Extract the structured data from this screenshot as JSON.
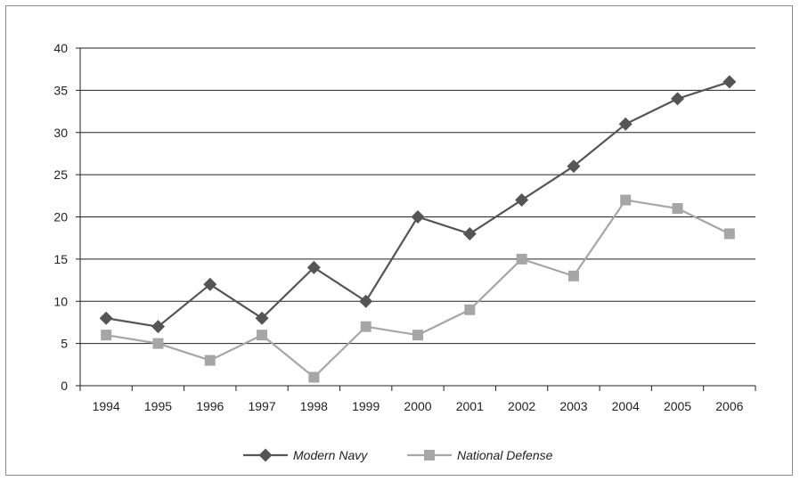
{
  "chart_data": {
    "type": "line",
    "title": "",
    "xlabel": "",
    "ylabel": "",
    "categories": [
      "1994",
      "1995",
      "1996",
      "1997",
      "1998",
      "1999",
      "2000",
      "2001",
      "2002",
      "2003",
      "2004",
      "2005",
      "2006"
    ],
    "ylim": [
      0,
      40
    ],
    "yticks": [
      0,
      5,
      10,
      15,
      20,
      25,
      30,
      35,
      40
    ],
    "grid": true,
    "legend_position": "bottom",
    "series": [
      {
        "name": "Modern Navy",
        "marker": "diamond",
        "color": "#555555",
        "values": [
          8,
          7,
          12,
          8,
          14,
          10,
          20,
          18,
          22,
          26,
          31,
          34,
          36
        ]
      },
      {
        "name": "National Defense",
        "marker": "square",
        "color": "#a6a6a6",
        "values": [
          6,
          5,
          3,
          6,
          1,
          7,
          6,
          9,
          15,
          13,
          22,
          21,
          18
        ]
      }
    ]
  }
}
